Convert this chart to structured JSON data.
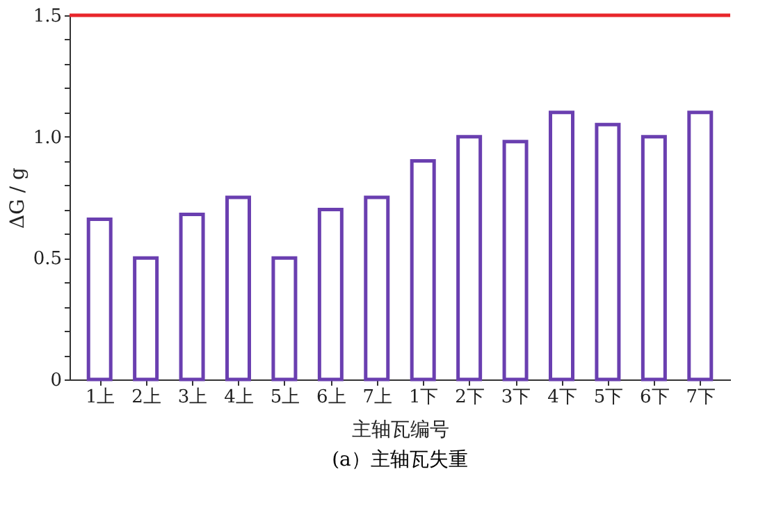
{
  "chart_data": {
    "type": "bar",
    "categories": [
      "1上",
      "2上",
      "3上",
      "4上",
      "5上",
      "6上",
      "7上",
      "1下",
      "2下",
      "3下",
      "4下",
      "5下",
      "6下",
      "7下"
    ],
    "values": [
      0.66,
      0.5,
      0.68,
      0.75,
      0.5,
      0.7,
      0.75,
      0.9,
      1.0,
      0.98,
      1.1,
      1.05,
      1.0,
      1.1
    ],
    "color": "#6a3fb0",
    "xlabel": "主轴瓦编号",
    "ylabel": "ΔG / g",
    "ylim": [
      0,
      1.5
    ],
    "yticks": [
      0,
      {
        "value": 0.1,
        "label": null
      },
      {
        "value": 0.2,
        "label": null
      },
      {
        "value": 0.3,
        "label": null
      },
      {
        "value": 0.4,
        "label": null
      },
      0.5,
      {
        "value": 0.6,
        "label": null
      },
      {
        "value": 0.7,
        "label": null
      },
      {
        "value": 0.8,
        "label": null
      },
      {
        "value": 0.9,
        "label": null
      },
      {
        "value": 1,
        "label": "1.0"
      },
      {
        "value": 1.1,
        "label": null
      },
      {
        "value": 1.2,
        "label": null
      },
      {
        "value": 1.3,
        "label": null
      },
      {
        "value": 1.4,
        "label": null
      },
      1.5
    ],
    "ref_lines": [
      {
        "axis": "y",
        "value": 1.5,
        "color": "#e8262b"
      }
    ],
    "grid": false,
    "annotations": [
      "(a）主轴瓦失重"
    ]
  }
}
